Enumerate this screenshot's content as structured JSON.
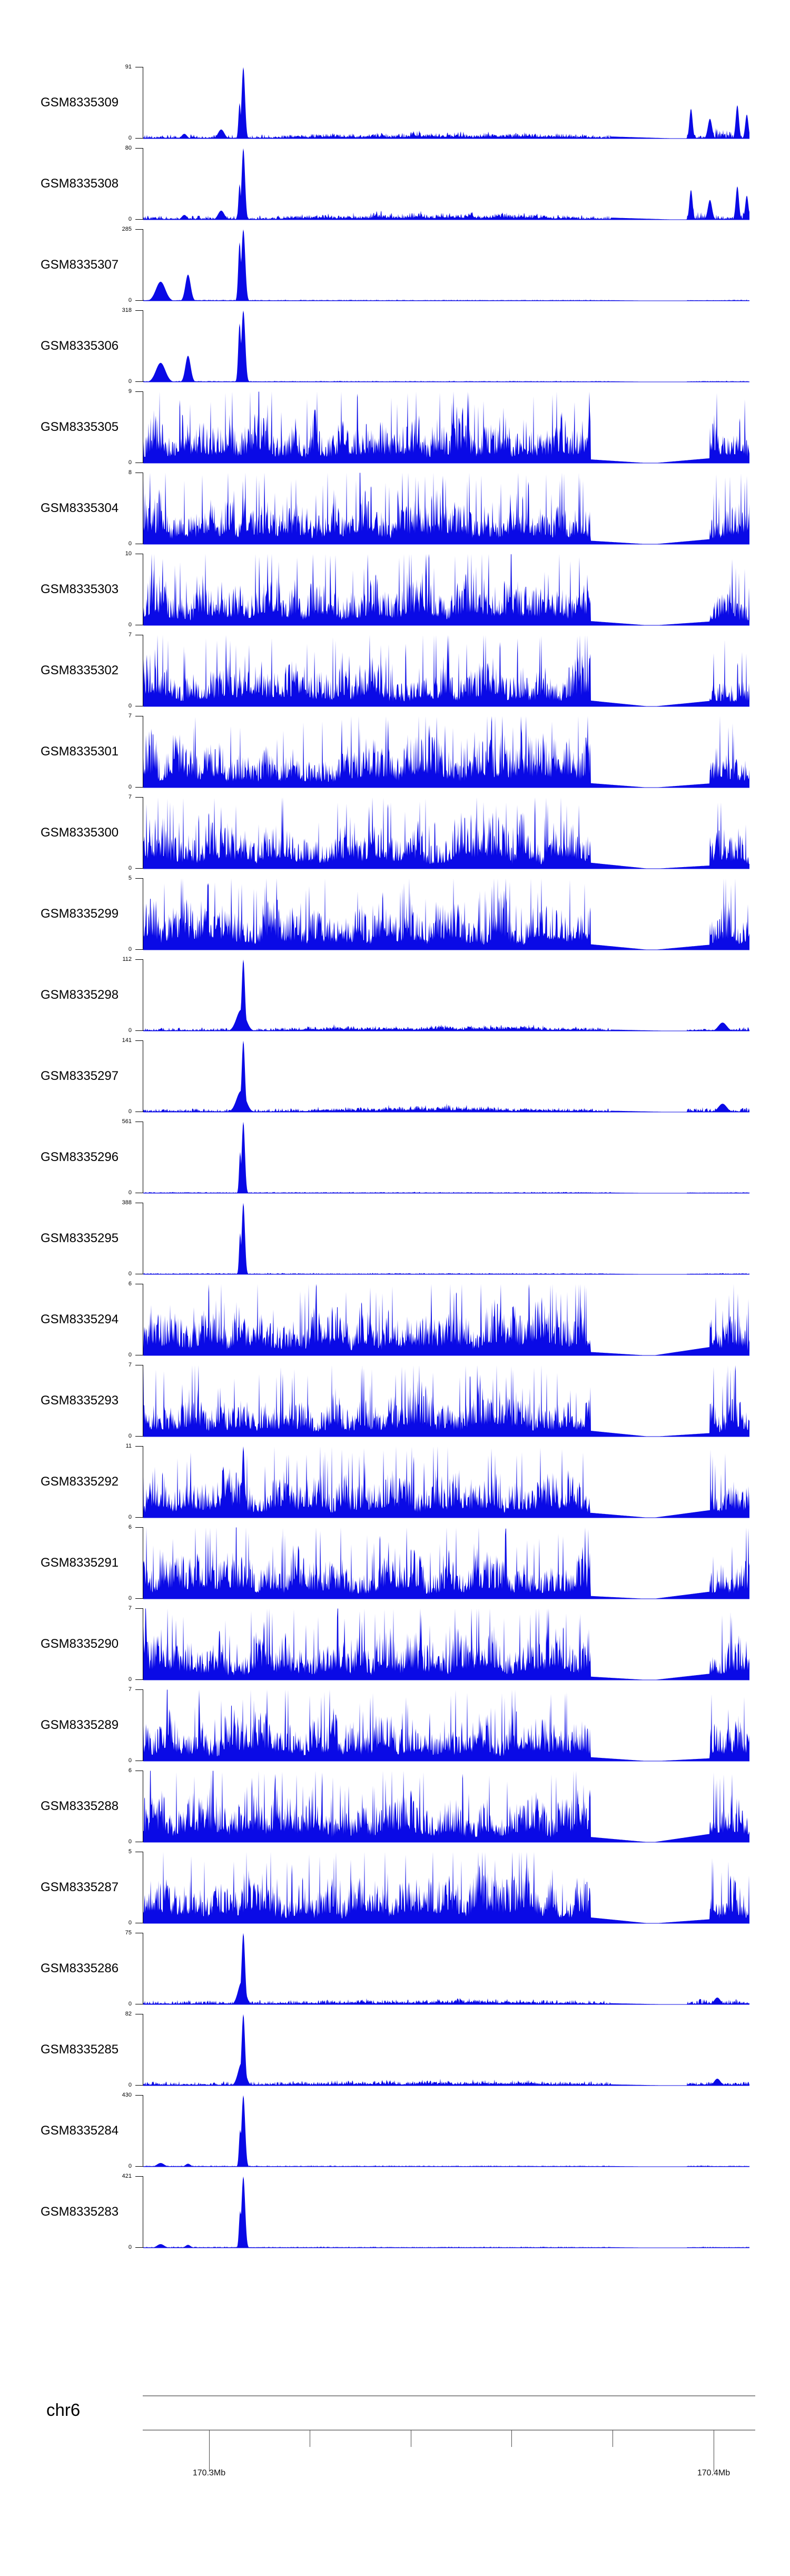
{
  "page": {
    "background": "#ffffff",
    "chromosome_label": "chr6"
  },
  "chart_data": {
    "type": "area",
    "description": "Genome browser coverage tracks for 27 GEO samples on chr6",
    "signal_color": "#0a0ae6",
    "axis_color": "#000000",
    "ruler_color": "#909090",
    "x_axis": {
      "chromosome": "chr6",
      "tick_labels": [
        "170.3Mb",
        "170.4Mb"
      ],
      "major_ticks_mb": [
        170.3,
        170.4
      ],
      "ticks_mb": [
        170.3,
        170.32,
        170.34,
        170.36,
        170.38,
        170.4
      ],
      "view_start_mb": 170.287,
      "view_end_mb": 170.407,
      "grid": false
    },
    "y_axis": {
      "min_label": "0"
    },
    "tracks": [
      {
        "name": "GSM8335309",
        "ymax": 91,
        "ymin": 0,
        "pattern": "sparse_peak",
        "seed": 101
      },
      {
        "name": "GSM8335308",
        "ymax": 80,
        "ymin": 0,
        "pattern": "sparse_peak",
        "seed": 202
      },
      {
        "name": "GSM8335307",
        "ymax": 285,
        "ymin": 0,
        "pattern": "multi_peak",
        "seed": 303
      },
      {
        "name": "GSM8335306",
        "ymax": 318,
        "ymin": 0,
        "pattern": "multi_peak",
        "seed": 404
      },
      {
        "name": "GSM8335305",
        "ymax": 9,
        "ymin": 0,
        "pattern": "dense",
        "seed": 505
      },
      {
        "name": "GSM8335304",
        "ymax": 8,
        "ymin": 0,
        "pattern": "dense",
        "seed": 606
      },
      {
        "name": "GSM8335303",
        "ymax": 10,
        "ymin": 0,
        "pattern": "dense",
        "seed": 707
      },
      {
        "name": "GSM8335302",
        "ymax": 7,
        "ymin": 0,
        "pattern": "dense",
        "seed": 808
      },
      {
        "name": "GSM8335301",
        "ymax": 7,
        "ymin": 0,
        "pattern": "dense",
        "seed": 909
      },
      {
        "name": "GSM8335300",
        "ymax": 7,
        "ymin": 0,
        "pattern": "dense",
        "seed": 1010
      },
      {
        "name": "GSM8335299",
        "ymax": 5,
        "ymin": 0,
        "pattern": "dense",
        "seed": 1111
      },
      {
        "name": "GSM8335298",
        "ymax": 112,
        "ymin": 0,
        "pattern": "assay_peak",
        "seed": 1212
      },
      {
        "name": "GSM8335297",
        "ymax": 141,
        "ymin": 0,
        "pattern": "assay_peak",
        "seed": 1313
      },
      {
        "name": "GSM8335296",
        "ymax": 561,
        "ymin": 0,
        "pattern": "narrow_twin",
        "seed": 1414
      },
      {
        "name": "GSM8335295",
        "ymax": 388,
        "ymin": 0,
        "pattern": "narrow_twin",
        "seed": 1515
      },
      {
        "name": "GSM8335294",
        "ymax": 6,
        "ymin": 0,
        "pattern": "dense",
        "seed": 1616
      },
      {
        "name": "GSM8335293",
        "ymax": 7,
        "ymin": 0,
        "pattern": "dense",
        "seed": 1717
      },
      {
        "name": "GSM8335292",
        "ymax": 11,
        "ymin": 0,
        "pattern": "dense_spike",
        "seed": 1818
      },
      {
        "name": "GSM8335291",
        "ymax": 6,
        "ymin": 0,
        "pattern": "dense",
        "seed": 1919
      },
      {
        "name": "GSM8335290",
        "ymax": 7,
        "ymin": 0,
        "pattern": "dense",
        "seed": 2020
      },
      {
        "name": "GSM8335289",
        "ymax": 7,
        "ymin": 0,
        "pattern": "dense",
        "seed": 2121
      },
      {
        "name": "GSM8335288",
        "ymax": 6,
        "ymin": 0,
        "pattern": "dense",
        "seed": 2222
      },
      {
        "name": "GSM8335287",
        "ymax": 5,
        "ymin": 0,
        "pattern": "dense",
        "seed": 2323
      },
      {
        "name": "GSM8335286",
        "ymax": 75,
        "ymin": 0,
        "pattern": "peak_noise",
        "seed": 2424
      },
      {
        "name": "GSM8335285",
        "ymax": 82,
        "ymin": 0,
        "pattern": "peak_noise",
        "seed": 2525
      },
      {
        "name": "GSM8335284",
        "ymax": 430,
        "ymin": 0,
        "pattern": "twin_bumps",
        "seed": 2626
      },
      {
        "name": "GSM8335283",
        "ymax": 421,
        "ymin": 0,
        "pattern": "twin_bumps",
        "seed": 2727
      }
    ],
    "patterns": {
      "dense": {
        "kind": "dense",
        "env_lo": 0.3,
        "env_hi": 0.88,
        "wedge": 0.06
      },
      "dense_spike": {
        "kind": "dense",
        "env_lo": 0.28,
        "env_hi": 0.8,
        "wedge": 0.06,
        "peaks": [
          [
            190,
            1.0,
            2.5
          ],
          [
            152,
            0.72,
            2.5
          ]
        ]
      },
      "sparse_peak": {
        "kind": "peaks",
        "base": 0.012,
        "noise": 0.05,
        "noise_pow": 3,
        "mid_amp": 0.11,
        "mid_from": 210,
        "mid_to": 885,
        "peaks": [
          [
            148,
            0.13,
            6
          ],
          [
            183,
            0.5,
            2.2
          ],
          [
            190,
            1.0,
            3.2
          ],
          [
            78,
            0.07,
            5
          ]
        ],
        "gap_taper": 0.032,
        "right_amp": 0.16,
        "right_peaks": [
          [
            1040,
            0.42,
            3
          ],
          [
            1076,
            0.28,
            4
          ],
          [
            1128,
            0.47,
            3
          ],
          [
            1146,
            0.34,
            3
          ]
        ]
      },
      "multi_peak": {
        "kind": "peaks",
        "base": 0.01,
        "noise": 0.008,
        "noise_pow": 3,
        "mid_amp": 0.0,
        "mid_from": 0,
        "mid_to": 0,
        "peaks": [
          [
            33,
            0.27,
            9
          ],
          [
            85,
            0.37,
            5
          ],
          [
            183,
            0.82,
            2.6
          ],
          [
            190,
            1.0,
            3.6
          ]
        ],
        "gap_taper": 0.012,
        "right_amp": 0.01,
        "right_peaks": []
      },
      "assay_peak": {
        "kind": "peaks",
        "base": 0.012,
        "noise": 0.04,
        "noise_pow": 3,
        "mid_amp": 0.08,
        "mid_from": 230,
        "mid_to": 890,
        "peaks": [
          [
            186,
            0.3,
            9
          ],
          [
            190,
            1.0,
            3.0
          ]
        ],
        "gap_taper": 0.022,
        "right_amp": 0.07,
        "right_peaks": [
          [
            1100,
            0.12,
            8
          ]
        ]
      },
      "narrow_twin": {
        "kind": "peaks",
        "base": 0.01,
        "noise": 0.012,
        "noise_pow": 3,
        "mid_amp": 0.0,
        "mid_from": 0,
        "mid_to": 0,
        "peaks": [
          [
            184,
            0.58,
            2.0
          ],
          [
            190,
            1.0,
            3.0
          ]
        ],
        "gap_taper": 0.012,
        "right_amp": 0.012,
        "right_peaks": []
      },
      "peak_noise": {
        "kind": "peaks",
        "base": 0.014,
        "noise": 0.05,
        "noise_pow": 3,
        "mid_amp": 0.06,
        "mid_from": 230,
        "mid_to": 880,
        "peaks": [
          [
            187,
            0.32,
            7
          ],
          [
            190,
            1.0,
            3.2
          ]
        ],
        "gap_taper": 0.02,
        "right_amp": 0.09,
        "right_peaks": [
          [
            1090,
            0.1,
            6
          ]
        ]
      },
      "twin_bumps": {
        "kind": "peaks",
        "base": 0.01,
        "noise": 0.01,
        "noise_pow": 3,
        "mid_amp": 0.0,
        "mid_from": 0,
        "mid_to": 0,
        "peaks": [
          [
            33,
            0.055,
            7
          ],
          [
            85,
            0.045,
            5
          ],
          [
            184,
            0.52,
            2.2
          ],
          [
            190,
            1.0,
            3.4
          ]
        ],
        "gap_taper": 0.012,
        "right_amp": 0.012,
        "right_peaks": []
      }
    }
  }
}
